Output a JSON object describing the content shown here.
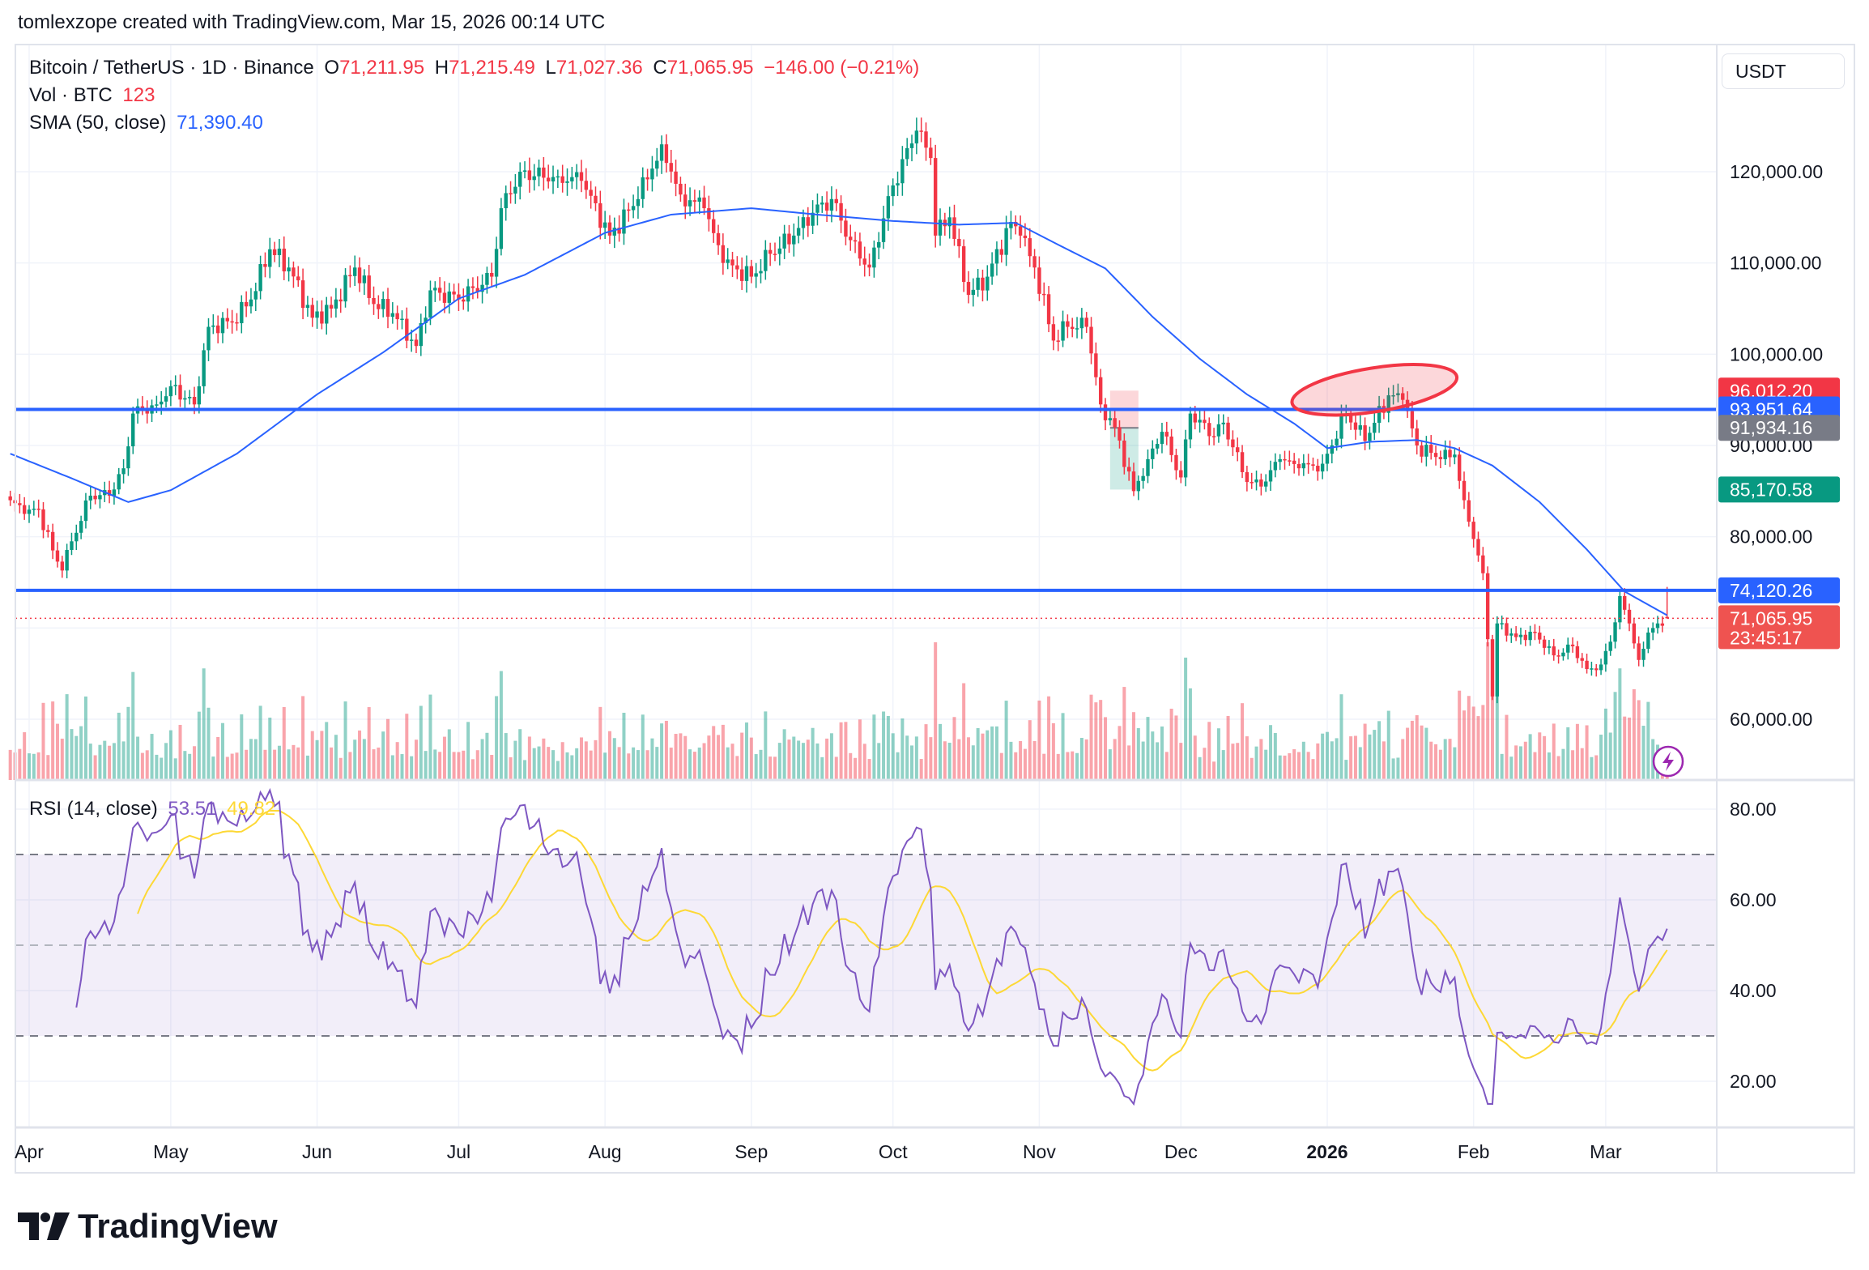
{
  "header": {
    "credit": "tomlexzope created with TradingView.com, Mar 15, 2026 00:14 UTC"
  },
  "legend": {
    "symbol": "Bitcoin / TetherUS · 1D · Binance",
    "o_label": "O",
    "o": "71,211.95",
    "h_label": "H",
    "h": "71,215.49",
    "l_label": "L",
    "l": "71,027.36",
    "c_label": "C",
    "c": "71,065.95",
    "change": "−146.00 (−0.21%)",
    "vol_label": "Vol · BTC",
    "vol": "123",
    "sma_label": "SMA (50, close)",
    "sma": "71,390.40",
    "rsi_label": "RSI (14, close)",
    "rsi": "53.51",
    "rsi_ma": "49.82"
  },
  "price_axis": {
    "currency": "USDT"
  },
  "brand": {
    "name": "TradingView"
  },
  "colors": {
    "up": "#089981",
    "down": "#f23645",
    "sma": "#2962ff",
    "hline": "#2962ff",
    "rsi": "#7e57c2",
    "rsi_ma": "#fdd835",
    "ellipse": "#f23645"
  },
  "chart_data": {
    "type": "candlestick",
    "symbol": "BTCUSDT",
    "interval": "1D",
    "ylim": [
      52000,
      135000
    ],
    "y_ticks": [
      60000,
      70000,
      80000,
      90000,
      100000,
      110000,
      120000
    ],
    "y_tick_labels": [
      "60,000.00",
      "",
      "80,000.00",
      "90,000.00",
      "100,000.00",
      "110,000.00",
      "120,000.00"
    ],
    "x_ticks": [
      {
        "date": "2025-04-01",
        "label": "Apr"
      },
      {
        "date": "2025-05-01",
        "label": "May"
      },
      {
        "date": "2025-06-01",
        "label": "Jun"
      },
      {
        "date": "2025-07-01",
        "label": "Jul"
      },
      {
        "date": "2025-08-01",
        "label": "Aug"
      },
      {
        "date": "2025-09-01",
        "label": "Sep"
      },
      {
        "date": "2025-10-01",
        "label": "Oct"
      },
      {
        "date": "2025-11-01",
        "label": "Nov"
      },
      {
        "date": "2025-12-01",
        "label": "Dec"
      },
      {
        "date": "2026-01-01",
        "label": "2026",
        "bold": true
      },
      {
        "date": "2026-02-01",
        "label": "Feb"
      },
      {
        "date": "2026-03-01",
        "label": "Mar"
      }
    ],
    "close_anchors": [
      [
        "2025-03-28",
        84000
      ],
      [
        "2025-03-31",
        82500
      ],
      [
        "2025-04-03",
        83000
      ],
      [
        "2025-04-06",
        78500
      ],
      [
        "2025-04-08",
        76300
      ],
      [
        "2025-04-10",
        79500
      ],
      [
        "2025-04-14",
        84500
      ],
      [
        "2025-04-18",
        84500
      ],
      [
        "2025-04-21",
        87500
      ],
      [
        "2025-04-23",
        93500
      ],
      [
        "2025-04-28",
        94500
      ],
      [
        "2025-05-01",
        96500
      ],
      [
        "2025-05-06",
        94500
      ],
      [
        "2025-05-09",
        103000
      ],
      [
        "2025-05-14",
        103500
      ],
      [
        "2025-05-18",
        106000
      ],
      [
        "2025-05-22",
        111500
      ],
      [
        "2025-05-26",
        109500
      ],
      [
        "2025-05-31",
        104000
      ],
      [
        "2025-06-04",
        105000
      ],
      [
        "2025-06-09",
        109500
      ],
      [
        "2025-06-13",
        105500
      ],
      [
        "2025-06-17",
        104500
      ],
      [
        "2025-06-22",
        100900
      ],
      [
        "2025-06-25",
        107000
      ],
      [
        "2025-07-01",
        106000
      ],
      [
        "2025-07-08",
        108500
      ],
      [
        "2025-07-10",
        116000
      ],
      [
        "2025-07-14",
        120000
      ],
      [
        "2025-07-17",
        119500
      ],
      [
        "2025-07-22",
        119500
      ],
      [
        "2025-07-27",
        119000
      ],
      [
        "2025-08-02",
        113000
      ],
      [
        "2025-08-08",
        117000
      ],
      [
        "2025-08-13",
        123000
      ],
      [
        "2025-08-17",
        117500
      ],
      [
        "2025-08-22",
        116000
      ],
      [
        "2025-08-26",
        110000
      ],
      [
        "2025-09-01",
        108500
      ],
      [
        "2025-09-05",
        111000
      ],
      [
        "2025-09-10",
        113000
      ],
      [
        "2025-09-14",
        115500
      ],
      [
        "2025-09-18",
        117000
      ],
      [
        "2025-09-22",
        112500
      ],
      [
        "2025-09-26",
        109500
      ],
      [
        "2025-10-01",
        118500
      ],
      [
        "2025-10-06",
        124500
      ],
      [
        "2025-10-09",
        121500
      ],
      [
        "2025-10-10",
        113000
      ],
      [
        "2025-10-13",
        115000
      ],
      [
        "2025-10-17",
        106500
      ],
      [
        "2025-10-21",
        108500
      ],
      [
        "2025-10-26",
        114500
      ],
      [
        "2025-10-28",
        113000
      ],
      [
        "2025-10-31",
        109500
      ],
      [
        "2025-11-04",
        101500
      ],
      [
        "2025-11-07",
        103000
      ],
      [
        "2025-11-11",
        103000
      ],
      [
        "2025-11-14",
        94500
      ],
      [
        "2025-11-17",
        92000
      ],
      [
        "2025-11-21",
        85000
      ],
      [
        "2025-11-24",
        88500
      ],
      [
        "2025-11-27",
        91500
      ],
      [
        "2025-12-01",
        86500
      ],
      [
        "2025-12-03",
        93500
      ],
      [
        "2025-12-08",
        91000
      ],
      [
        "2025-12-10",
        92500
      ],
      [
        "2025-12-15",
        86000
      ],
      [
        "2025-12-18",
        85500
      ],
      [
        "2025-12-22",
        88500
      ],
      [
        "2025-12-26",
        87500
      ],
      [
        "2025-12-31",
        88000
      ],
      [
        "2026-01-05",
        93500
      ],
      [
        "2026-01-09",
        90500
      ],
      [
        "2026-01-14",
        95500
      ],
      [
        "2026-01-17",
        95000
      ],
      [
        "2026-01-20",
        90000
      ],
      [
        "2026-01-25",
        88500
      ],
      [
        "2026-01-28",
        89000
      ],
      [
        "2026-01-30",
        84000
      ],
      [
        "2026-02-03",
        76000
      ],
      [
        "2026-02-05",
        62500
      ],
      [
        "2026-02-06",
        70500
      ],
      [
        "2026-02-10",
        69000
      ],
      [
        "2026-02-14",
        69500
      ],
      [
        "2026-02-18",
        67000
      ],
      [
        "2026-02-22",
        68000
      ],
      [
        "2026-02-25",
        65500
      ],
      [
        "2026-02-28",
        66000
      ],
      [
        "2026-03-02",
        68500
      ],
      [
        "2026-03-04",
        73500
      ],
      [
        "2026-03-06",
        70500
      ],
      [
        "2026-03-08",
        66500
      ],
      [
        "2026-03-10",
        69500
      ],
      [
        "2026-03-12",
        70500
      ],
      [
        "2026-03-14",
        71065.95
      ]
    ],
    "last_candle": {
      "date": "2026-03-14",
      "open": 71211.95,
      "high": 71215.49,
      "low": 71027.36,
      "close": 71065.95
    },
    "sma50_anchors": [
      [
        "2025-03-28",
        89100
      ],
      [
        "2025-04-10",
        86400
      ],
      [
        "2025-04-22",
        83800
      ],
      [
        "2025-05-01",
        85100
      ],
      [
        "2025-05-15",
        89100
      ],
      [
        "2025-06-01",
        95600
      ],
      [
        "2025-06-15",
        100200
      ],
      [
        "2025-07-01",
        106100
      ],
      [
        "2025-07-15",
        108700
      ],
      [
        "2025-08-01",
        113300
      ],
      [
        "2025-08-15",
        115300
      ],
      [
        "2025-09-01",
        116000
      ],
      [
        "2025-09-15",
        115300
      ],
      [
        "2025-10-01",
        114600
      ],
      [
        "2025-10-15",
        114200
      ],
      [
        "2025-10-27",
        114400
      ],
      [
        "2025-11-05",
        112000
      ],
      [
        "2025-11-15",
        109400
      ],
      [
        "2025-11-25",
        104100
      ],
      [
        "2025-12-05",
        99500
      ],
      [
        "2025-12-15",
        95600
      ],
      [
        "2025-12-25",
        92400
      ],
      [
        "2026-01-01",
        89700
      ],
      [
        "2026-01-10",
        90400
      ],
      [
        "2026-01-20",
        90600
      ],
      [
        "2026-01-28",
        89700
      ],
      [
        "2026-02-05",
        87800
      ],
      [
        "2026-02-15",
        83800
      ],
      [
        "2026-02-25",
        78600
      ],
      [
        "2026-03-05",
        74000
      ],
      [
        "2026-03-14",
        71390.4
      ]
    ],
    "horizontal_lines": [
      {
        "price": 93951.64,
        "label": "93,951.64"
      },
      {
        "price": 74120.26,
        "label": "74,120.26"
      }
    ],
    "position_tool": {
      "start": "2025-11-16",
      "end": "2025-11-22",
      "target": 96012.2,
      "target_label": "96,012.20",
      "entry": 91934.16,
      "entry_label": "91,934.16",
      "stop": 85170.58,
      "stop_label": "85,170.58"
    },
    "ellipse_annotation": {
      "center_date": "2026-01-11",
      "center_price": 96100
    },
    "current_price": {
      "price": 71065.95,
      "label": "71,065.95",
      "countdown": "23:45:17"
    },
    "rsi": {
      "period": 14,
      "ylim": [
        15,
        85
      ],
      "ticks": [
        20,
        40,
        60,
        80
      ],
      "tick_labels": [
        "20.00",
        "40.00",
        "60.00",
        "80.00"
      ],
      "bands": [
        30,
        50,
        70
      ]
    }
  }
}
